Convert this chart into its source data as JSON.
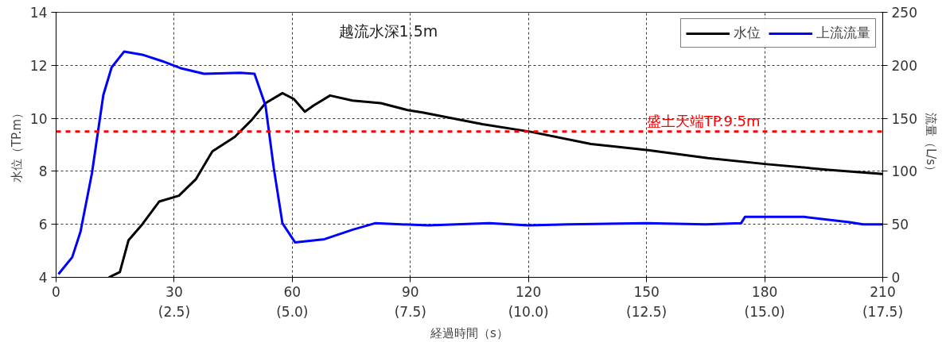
{
  "chart_data": {
    "type": "line",
    "xlabel": "経過時間（s）",
    "ylabel": "水位（TP.m）",
    "y2label": "流量（L/s）",
    "xlim": [
      0,
      210
    ],
    "ylim": [
      4,
      14
    ],
    "y2lim": [
      0,
      250
    ],
    "xticks": [
      0,
      30,
      60,
      90,
      120,
      150,
      180,
      210
    ],
    "x2lim": [
      0,
      17.5
    ],
    "x2ticks": [
      {
        "value": 2.5,
        "label": "(2.5)"
      },
      {
        "value": 5.0,
        "label": "(5.0)"
      },
      {
        "value": 7.5,
        "label": "(7.5)"
      },
      {
        "value": 10.0,
        "label": "(10.0)"
      },
      {
        "value": 12.5,
        "label": "(12.5)"
      },
      {
        "value": 15.0,
        "label": "(15.0)"
      },
      {
        "value": 17.5,
        "label": "(17.5)"
      }
    ],
    "yticks": [
      4,
      6,
      8,
      10,
      12,
      14
    ],
    "y2ticks": [
      0,
      50,
      100,
      150,
      200,
      250
    ],
    "grid": true,
    "legend": "top right",
    "line_style": "solid",
    "marker": "none",
    "series": [
      {
        "name": "水位",
        "color": "#000000",
        "x": [
          13.4,
          16.2,
          18.4,
          21.9,
          26.2,
          31.2,
          35.5,
          39.7,
          45.4,
          49.7,
          53.2,
          57.5,
          60.4,
          63.2,
          65.4,
          69.6,
          75.3,
          82.5,
          89.6,
          93.1,
          108.3,
          120.6,
          135.9,
          150.4,
          165.6,
          180.5,
          196.1,
          210
        ],
        "values": [
          4.0,
          4.2,
          5.4,
          6.0,
          6.86,
          7.08,
          7.7,
          8.75,
          9.3,
          9.94,
          10.57,
          10.95,
          10.73,
          10.25,
          10.48,
          10.86,
          10.67,
          10.57,
          10.3,
          10.22,
          9.78,
          9.49,
          9.03,
          8.8,
          8.5,
          8.27,
          8.06,
          7.9
        ]
      },
      {
        "name": "上流流量",
        "color": "#0000ff",
        "axis": "y2",
        "x": [
          0.6,
          4.1,
          6.2,
          9.1,
          12,
          14.1,
          17.3,
          21.9,
          26.9,
          31.9,
          37.6,
          46.8,
          50.4,
          53.2,
          55.3,
          57.5,
          60.7,
          68.2,
          75.4,
          81,
          94.6,
          110,
          120,
          130,
          150,
          165,
          174,
          175,
          190,
          201.5,
          205,
          210
        ],
        "values": [
          3,
          19,
          43,
          98,
          172,
          198,
          213,
          210,
          204,
          197,
          192,
          193,
          192,
          162,
          103,
          51,
          33,
          36,
          45,
          51,
          49,
          51,
          49,
          50,
          51,
          50,
          51,
          57,
          57,
          52,
          50,
          50
        ]
      }
    ],
    "ref_lines": [
      {
        "axis": "y",
        "value": 9.5,
        "label": "盛土天端TP.9.5m",
        "color": "#ff0000",
        "line_style": "dashed"
      }
    ],
    "annotations": [
      "越流水深1.5m"
    ]
  }
}
